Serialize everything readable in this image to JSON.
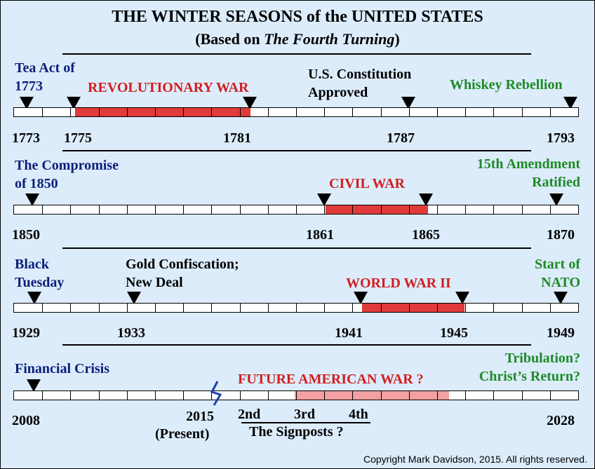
{
  "title": "THE WINTER SEASONS of the UNITED STATES",
  "subtitle": {
    "prefix": "(Based on ",
    "book": "The Fourth Turning",
    "suffix": ")"
  },
  "colors": {
    "background": "#dcecfb",
    "war": "#e03a3a",
    "future_war": "#f2a0a0",
    "navy": "#0c1f78",
    "red": "#d21e1e",
    "green": "#1e8a26"
  },
  "rows": [
    {
      "id": "revolution",
      "range": [
        1773,
        1793
      ],
      "events": [
        {
          "id": "tea-act",
          "label_lines": [
            "Tea Act of",
            "1773"
          ],
          "color": "navy",
          "year": "1773"
        },
        {
          "id": "war-start",
          "year": "1775"
        },
        {
          "id": "war-end",
          "year": "1781"
        },
        {
          "id": "constitution",
          "label_lines": [
            "U.S. Constitution",
            "Approved"
          ],
          "color": "black",
          "year": "1787"
        },
        {
          "id": "whiskey",
          "label_lines": [
            "Whiskey Rebellion"
          ],
          "color": "green",
          "year": "1793"
        }
      ],
      "war": {
        "label": "REVOLUTIONARY WAR",
        "start": 1775,
        "end": 1781
      }
    },
    {
      "id": "civil",
      "range": [
        1850,
        1870
      ],
      "events": [
        {
          "id": "compromise",
          "label_lines": [
            "The Compromise",
            "of 1850"
          ],
          "color": "navy",
          "year": "1850"
        },
        {
          "id": "war-start",
          "year": "1861"
        },
        {
          "id": "war-end",
          "year": "1865"
        },
        {
          "id": "amendment",
          "label_lines": [
            "15th Amendment",
            "Ratified"
          ],
          "color": "green",
          "year": "1870"
        }
      ],
      "war": {
        "label": "CIVIL WAR",
        "start": 1861,
        "end": 1865
      }
    },
    {
      "id": "ww2",
      "range": [
        1929,
        1949
      ],
      "events": [
        {
          "id": "black-tuesday",
          "label_lines": [
            "Black",
            "Tuesday"
          ],
          "color": "navy",
          "year": "1929"
        },
        {
          "id": "gold",
          "label_lines": [
            "Gold Confiscation;",
            "New Deal"
          ],
          "color": "black",
          "year": "1933"
        },
        {
          "id": "war-start",
          "year": "1941"
        },
        {
          "id": "war-end",
          "year": "1945"
        },
        {
          "id": "nato",
          "label_lines": [
            "Start of",
            "NATO"
          ],
          "color": "green",
          "year": "1949"
        }
      ],
      "war": {
        "label": "WORLD WAR II",
        "start": 1941,
        "end": 1945
      }
    },
    {
      "id": "future",
      "range": [
        2008,
        2028
      ],
      "events": [
        {
          "id": "financial",
          "label_lines": [
            "Financial Crisis"
          ],
          "color": "navy",
          "year": "2008"
        },
        {
          "id": "present",
          "year": "2015",
          "note": "(Present)"
        },
        {
          "id": "end",
          "label_lines": [
            "Tribulation?",
            "Christ’s Return?"
          ],
          "color": "green",
          "year": "2028"
        }
      ],
      "war": {
        "label": "FUTURE AMERICAN WAR ?"
      },
      "signposts": {
        "items": [
          "2nd",
          "3rd",
          "4th"
        ],
        "caption": "The Signposts ?"
      }
    }
  ],
  "copyright": "Copyright Mark Davidson, 2015. All rights reserved."
}
